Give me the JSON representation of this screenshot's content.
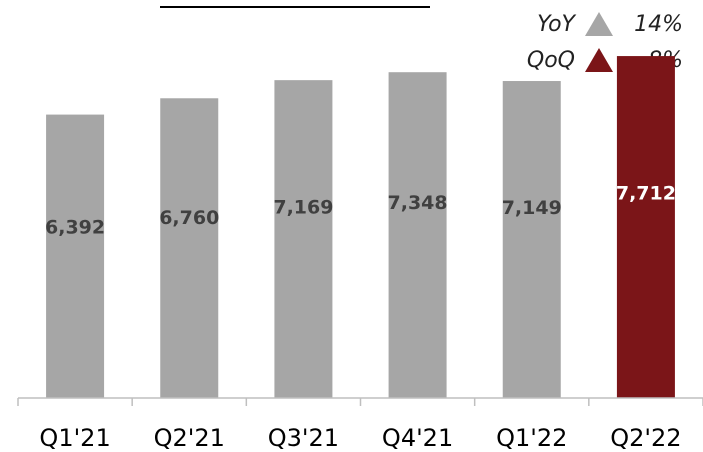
{
  "title_fragment": "",
  "legend": [
    {
      "label": "YoY",
      "value": "14%",
      "color": "#a6a6a6",
      "icon": "triangle-up-icon"
    },
    {
      "label": "QoQ",
      "value": "8%",
      "color": "#7b1518",
      "icon": "triangle-up-icon"
    }
  ],
  "chart_data": {
    "type": "bar",
    "categories": [
      "Q1'21",
      "Q2'21",
      "Q3'21",
      "Q4'21",
      "Q1'22",
      "Q2'22"
    ],
    "values": [
      6392,
      6760,
      7169,
      7348,
      7149,
      7712
    ],
    "value_labels": [
      "6,392",
      "6,760",
      "7,169",
      "7,348",
      "7,149",
      "7,712"
    ],
    "colors": [
      "#a6a6a6",
      "#a6a6a6",
      "#a6a6a6",
      "#a6a6a6",
      "#a6a6a6",
      "#7b1518"
    ],
    "label_colors": [
      "#404040",
      "#404040",
      "#404040",
      "#404040",
      "#404040",
      "#ffffff"
    ],
    "ylim": [
      0,
      8300
    ],
    "grid": false,
    "legend_position": "top-right"
  }
}
